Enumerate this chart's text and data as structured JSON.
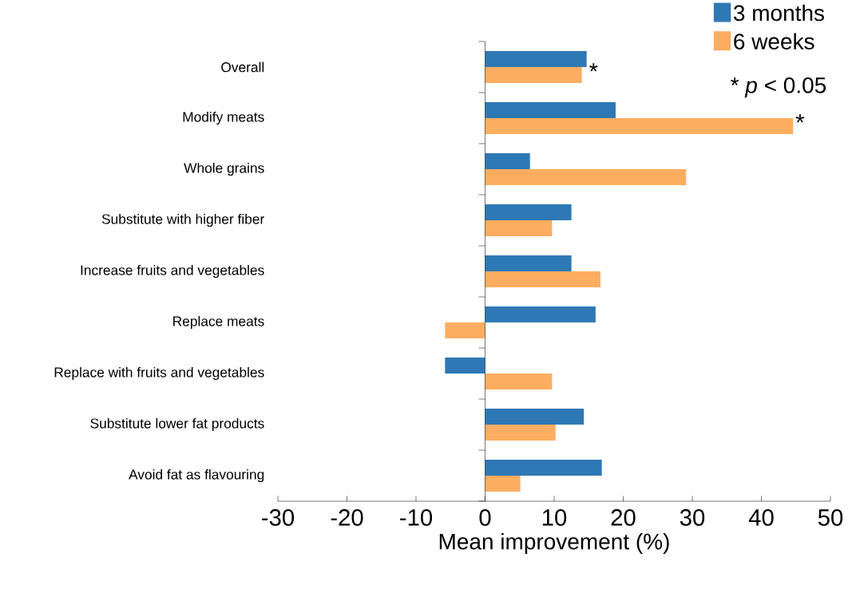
{
  "chart_data": {
    "type": "bar",
    "orientation": "horizontal",
    "xlabel": "Mean improvement (%)",
    "categories": [
      "Overall",
      "Modify meats",
      "Whole grains",
      "Substitute with higher fiber",
      "Increase fruits and vegetables",
      "Replace meats",
      "Replace with fruits and vegetables",
      "Substitute lower fat products",
      "Avoid fat as flavouring"
    ],
    "series": [
      {
        "name": "3 months",
        "color": "#2e78b5",
        "values": [
          14.7,
          18.9,
          6.5,
          12.5,
          12.5,
          16.0,
          -5.8,
          14.3,
          16.9
        ]
      },
      {
        "name": "6 weeks",
        "color": "#fdad60",
        "values": [
          14.0,
          44.6,
          29.1,
          9.7,
          16.7,
          -5.8,
          9.7,
          10.2,
          5.1
        ]
      }
    ],
    "xlim": [
      -30,
      50
    ],
    "xticks": [
      -30,
      -20,
      -10,
      0,
      10,
      20,
      30,
      40,
      50
    ],
    "legend": "top right",
    "grid": false,
    "ref_lines": [
      {
        "axis": "x",
        "value": 0,
        "color": "#000000"
      }
    ],
    "annotations": [
      "* *p* < 0.05",
      {
        "text": "*",
        "x": 14.7,
        "y": "Overall"
      },
      {
        "text": "*",
        "x": 44.6,
        "y": "Modify meats"
      }
    ]
  }
}
